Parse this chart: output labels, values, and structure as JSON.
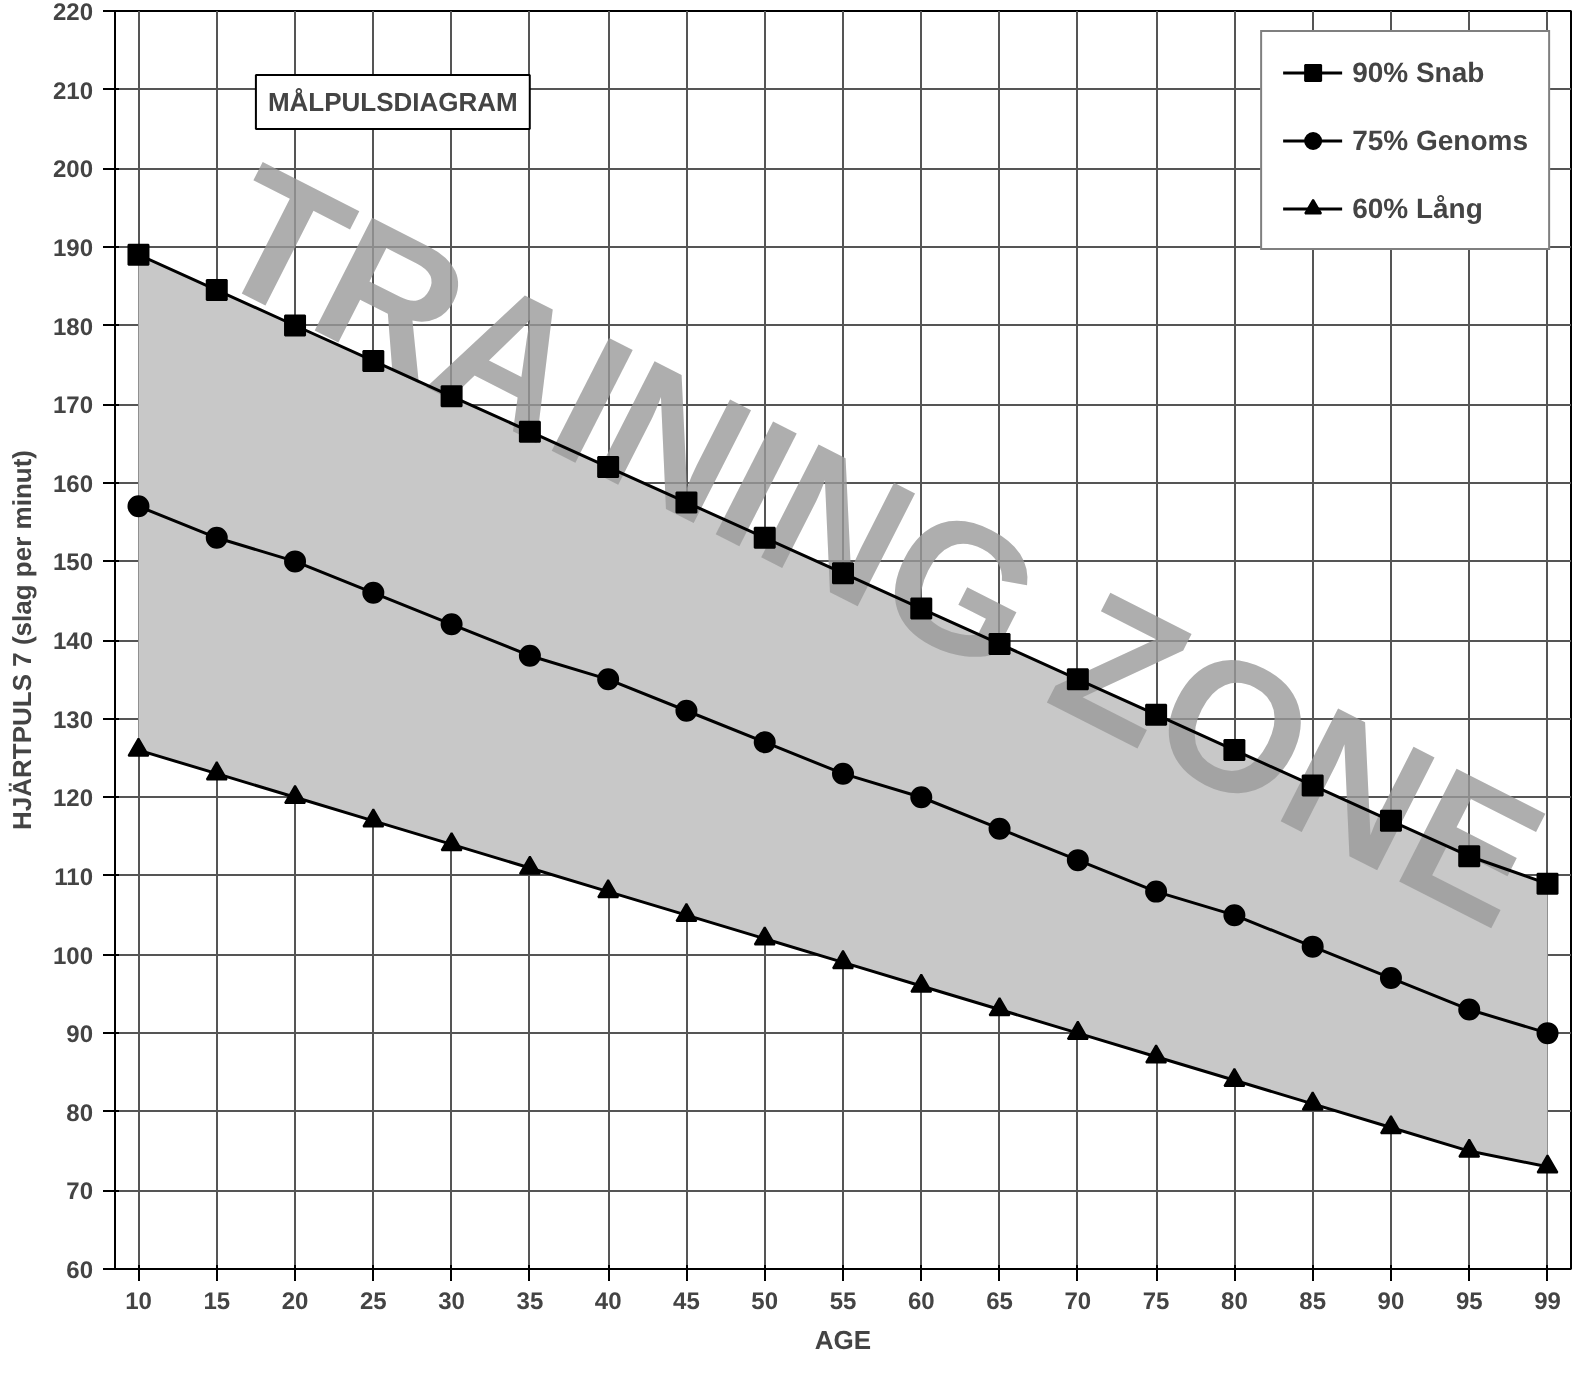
{
  "chart_data": {
    "type": "line",
    "title": "MÅLPULSDIAGRAM",
    "xlabel": "AGE",
    "ylabel": "HJÄRTPULS 7 (slag per minut)",
    "categories": [
      "10",
      "15",
      "20",
      "25",
      "30",
      "35",
      "40",
      "45",
      "50",
      "55",
      "60",
      "65",
      "70",
      "75",
      "80",
      "85",
      "90",
      "95",
      "99"
    ],
    "series": [
      {
        "name": "90% Snab",
        "color": "#000000",
        "marker": "square",
        "values": [
          189,
          184.5,
          180,
          175.5,
          171,
          166.5,
          162,
          157.5,
          153,
          148.5,
          144,
          139.5,
          135,
          130.5,
          126,
          121.5,
          117,
          112.5,
          109
        ]
      },
      {
        "name": "75% Genoms",
        "color": "#000000",
        "marker": "circle",
        "values": [
          157,
          153,
          150,
          146,
          142,
          138,
          135,
          131,
          127,
          123,
          120,
          116,
          112,
          108,
          105,
          101,
          97,
          93,
          90
        ],
        "lower": [
          126,
          123,
          120,
          117,
          114,
          111,
          108,
          105,
          102,
          99,
          96,
          93,
          90,
          87,
          84,
          81,
          78,
          75,
          73
        ],
        "upper": [
          189,
          184.5,
          180,
          175.5,
          171,
          166.5,
          162,
          157.5,
          153,
          148.5,
          144,
          139.5,
          135,
          130.5,
          126,
          121.5,
          117,
          112.5,
          109
        ]
      },
      {
        "name": "60% Lång",
        "color": "#000000",
        "marker": "triangle",
        "values": [
          126,
          123,
          120,
          117,
          114,
          111,
          108,
          105,
          102,
          99,
          96,
          93,
          90,
          87,
          84,
          81,
          78,
          75,
          73
        ]
      }
    ],
    "ylim": [
      60,
      220
    ],
    "yticks": [
      60,
      70,
      80,
      90,
      100,
      110,
      120,
      130,
      140,
      150,
      160,
      170,
      180,
      190,
      200,
      210,
      220
    ],
    "grid": true,
    "legend": "top right",
    "annotations": [
      "TRAINING ZONE"
    ]
  }
}
